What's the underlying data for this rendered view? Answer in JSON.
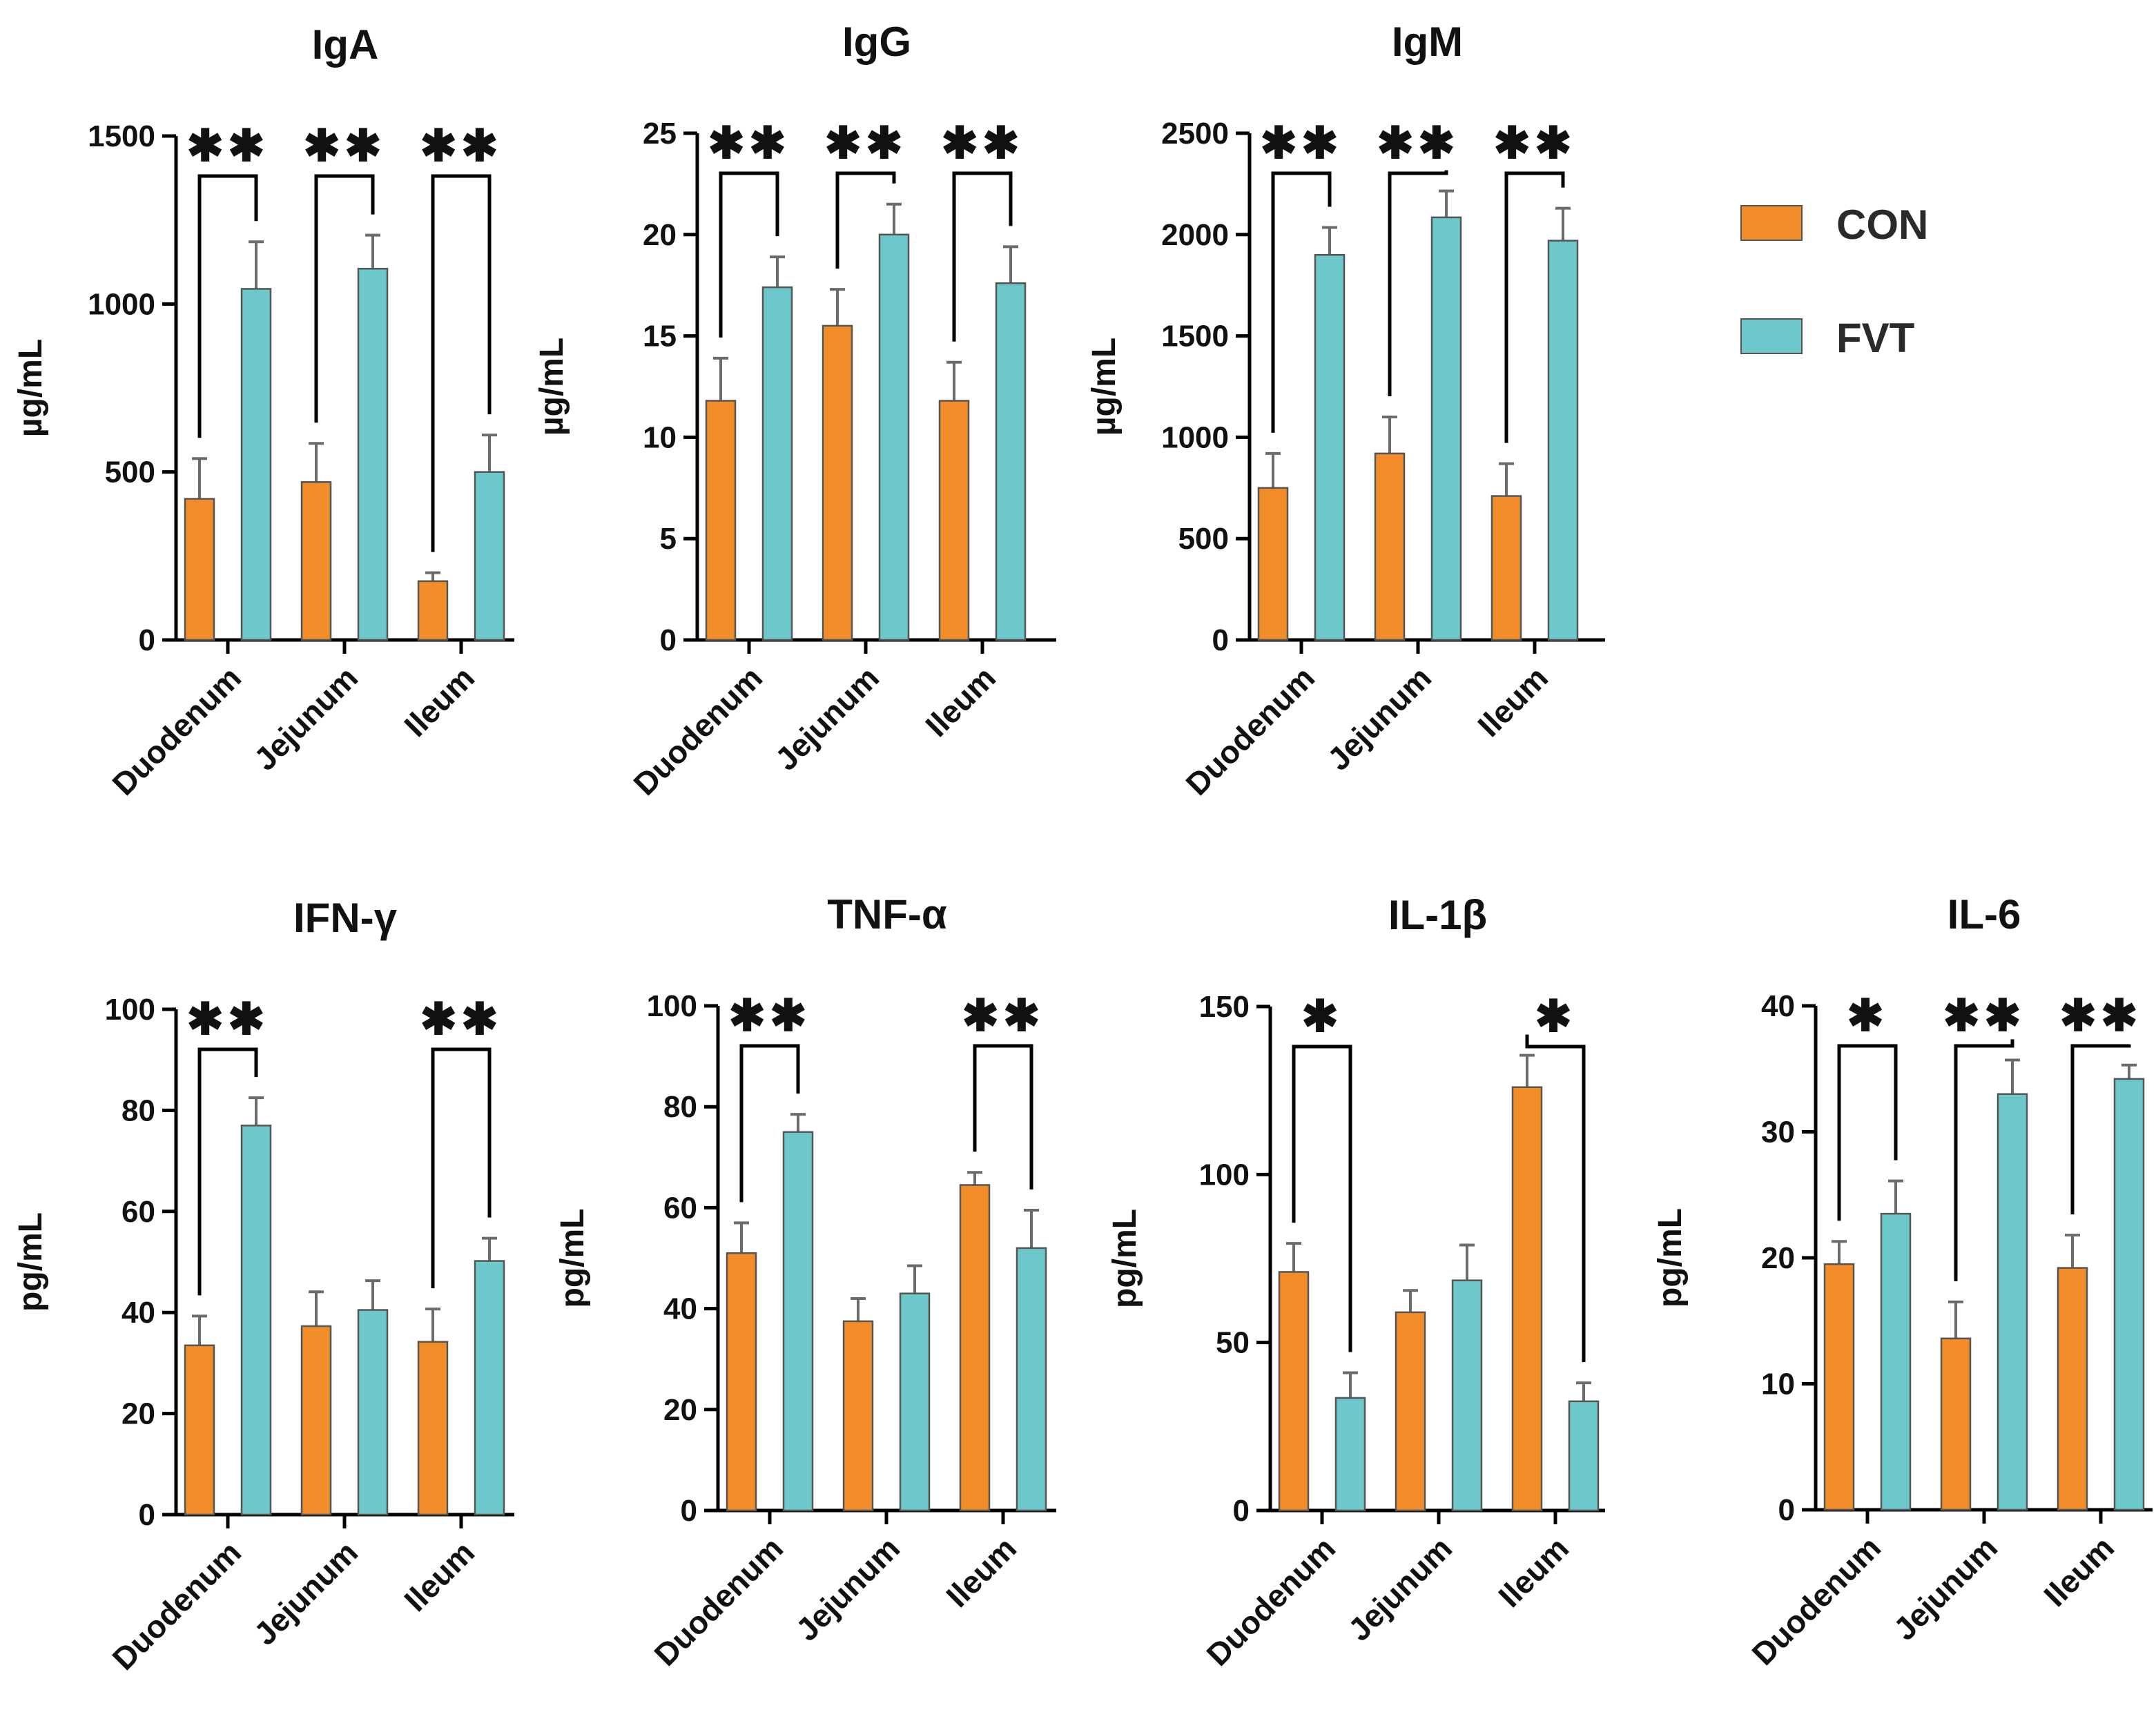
{
  "legend": [
    {
      "name": "CON",
      "color": "#F28C28"
    },
    {
      "name": "FVT",
      "color": "#6CC8CB"
    }
  ],
  "chart_data": [
    {
      "type": "bar",
      "title": "IgA",
      "ylabel": "µg/mL",
      "ylim": [
        0,
        1500
      ],
      "yticks": [
        0,
        500,
        1000,
        1500
      ],
      "ytick_labels": [
        "0",
        "500",
        "1000",
        "1500"
      ],
      "categories": [
        "Duodenum",
        "Jejunum",
        "Ileum"
      ],
      "series": [
        {
          "name": "CON",
          "values": [
            420,
            470,
            175
          ],
          "errors": [
            120,
            115,
            25
          ]
        },
        {
          "name": "FVT",
          "values": [
            1045,
            1105,
            500
          ],
          "errors": [
            140,
            100,
            110
          ]
        }
      ],
      "significance": [
        "**",
        "**",
        "**"
      ]
    },
    {
      "type": "bar",
      "title": "IgG",
      "ylabel": "µg/mL",
      "ylim": [
        0,
        25
      ],
      "yticks": [
        0,
        5,
        10,
        15,
        20,
        25
      ],
      "ytick_labels": [
        "0",
        "5",
        "10",
        "15",
        "20",
        "25"
      ],
      "categories": [
        "Duodenum",
        "Jejunum",
        "Ileum"
      ],
      "series": [
        {
          "name": "CON",
          "values": [
            11.8,
            15.5,
            11.8
          ],
          "errors": [
            2.1,
            1.8,
            1.9
          ]
        },
        {
          "name": "FVT",
          "values": [
            17.4,
            20.0,
            17.6
          ],
          "errors": [
            1.5,
            1.5,
            1.8
          ]
        }
      ],
      "significance": [
        "**",
        "**",
        "**"
      ]
    },
    {
      "type": "bar",
      "title": "IgM",
      "ylabel": "µg/mL",
      "ylim": [
        0,
        2500
      ],
      "yticks": [
        0,
        500,
        1000,
        1500,
        2000,
        2500
      ],
      "ytick_labels": [
        "0",
        "500",
        "1000",
        "1500",
        "2000",
        "2500"
      ],
      "categories": [
        "Duodenum",
        "Jejunum",
        "Ileum"
      ],
      "series": [
        {
          "name": "CON",
          "values": [
            750,
            920,
            710
          ],
          "errors": [
            170,
            180,
            160
          ]
        },
        {
          "name": "FVT",
          "values": [
            1900,
            2085,
            1970
          ],
          "errors": [
            135,
            130,
            160
          ]
        }
      ],
      "significance": [
        "**",
        "**",
        "**"
      ]
    },
    {
      "type": "bar",
      "title": "IFN-γ",
      "ylabel": "pg/mL",
      "ylim": [
        0,
        100
      ],
      "yticks": [
        0,
        20,
        40,
        60,
        80,
        100
      ],
      "ytick_labels": [
        "0",
        "20",
        "40",
        "60",
        "80",
        "100"
      ],
      "categories": [
        "Duodenum",
        "Jejunum",
        "Ileum"
      ],
      "series": [
        {
          "name": "CON",
          "values": [
            33.5,
            37.3,
            34.2
          ],
          "errors": [
            5.8,
            6.8,
            6.5
          ]
        },
        {
          "name": "FVT",
          "values": [
            77.0,
            40.5,
            50.2
          ],
          "errors": [
            5.5,
            5.8,
            4.5
          ]
        }
      ],
      "significance": [
        "**",
        "",
        "**"
      ]
    },
    {
      "type": "bar",
      "title": "TNF-α",
      "ylabel": "pg/mL",
      "ylim": [
        0,
        100
      ],
      "yticks": [
        0,
        20,
        40,
        60,
        80,
        100
      ],
      "ytick_labels": [
        "0",
        "20",
        "40",
        "60",
        "80",
        "100"
      ],
      "categories": [
        "Duodenum",
        "Jejunum",
        "Ileum"
      ],
      "series": [
        {
          "name": "CON",
          "values": [
            51.0,
            37.5,
            64.5
          ],
          "errors": [
            6.0,
            4.5,
            2.5
          ]
        },
        {
          "name": "FVT",
          "values": [
            75.0,
            43.0,
            52.0
          ],
          "errors": [
            3.5,
            5.5,
            7.5
          ]
        }
      ],
      "significance": [
        "**",
        "",
        "**"
      ]
    },
    {
      "type": "bar",
      "title": "IL-1β",
      "ylabel": "pg/mL",
      "ylim": [
        0,
        150
      ],
      "yticks": [
        0,
        50,
        100,
        150
      ],
      "ytick_labels": [
        "0",
        "50",
        "100",
        "150"
      ],
      "categories": [
        "Duodenum",
        "Jejunum",
        "Ileum"
      ],
      "series": [
        {
          "name": "CON",
          "values": [
            71,
            59,
            126
          ],
          "errors": [
            8.5,
            6.5,
            9.5
          ]
        },
        {
          "name": "FVT",
          "values": [
            33.5,
            68.5,
            32.5
          ],
          "errors": [
            7.5,
            10.5,
            5.5
          ]
        }
      ],
      "significance": [
        "*",
        "",
        "*"
      ]
    },
    {
      "type": "bar",
      "title": "IL-6",
      "ylabel": "pg/mL",
      "ylim": [
        0,
        40
      ],
      "yticks": [
        0,
        10,
        20,
        30,
        40
      ],
      "ytick_labels": [
        "0",
        "10",
        "20",
        "30",
        "40"
      ],
      "categories": [
        "Duodenum",
        "Jejunum",
        "Ileum"
      ],
      "series": [
        {
          "name": "CON",
          "values": [
            19.5,
            13.6,
            19.2
          ],
          "errors": [
            1.8,
            2.9,
            2.6
          ]
        },
        {
          "name": "FVT",
          "values": [
            23.5,
            33.0,
            34.2
          ],
          "errors": [
            2.6,
            2.7,
            1.1
          ]
        }
      ],
      "significance": [
        "*",
        "**",
        "**"
      ]
    }
  ]
}
